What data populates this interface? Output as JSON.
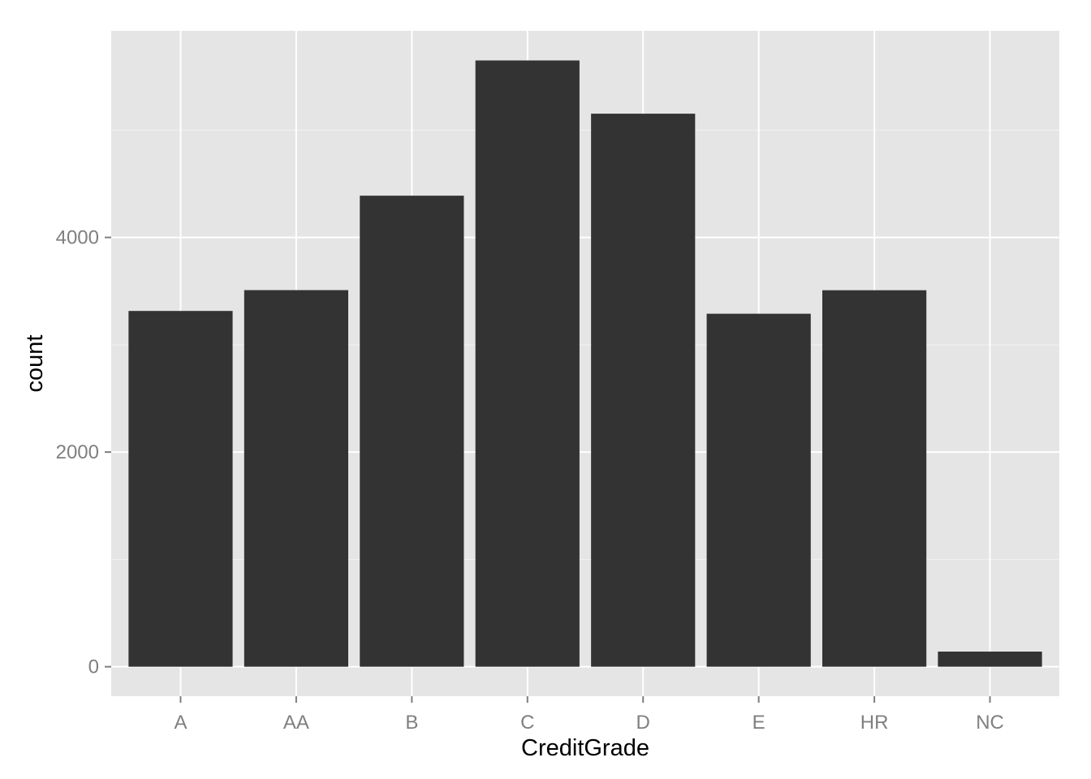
{
  "chart_data": {
    "type": "bar",
    "title": "",
    "xlabel": "CreditGrade",
    "ylabel": "count",
    "categories": [
      "A",
      "AA",
      "B",
      "C",
      "D",
      "E",
      "HR",
      "NC"
    ],
    "values": [
      3315,
      3509,
      4389,
      5649,
      5153,
      3289,
      3508,
      141
    ],
    "ylim": [
      -275,
      5925
    ],
    "yticks": [
      0,
      2000,
      4000
    ],
    "grid": true,
    "legend": "none",
    "colors": {
      "panel_background": "#e5e5e5",
      "grid_major": "#ffffff",
      "grid_minor": "#f2f2f2",
      "bar_fill": "#333333",
      "tick_label": "#7f7f7f",
      "tick_mark": "#7f7f7f",
      "axis_title": "#000000"
    }
  }
}
